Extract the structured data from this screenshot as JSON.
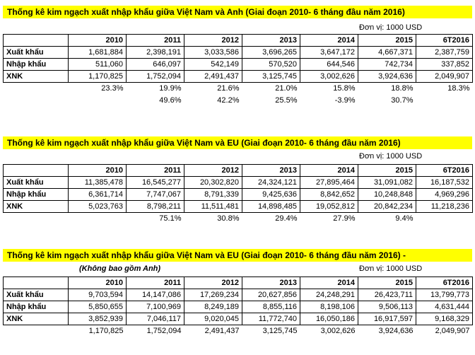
{
  "columns": [
    "2010",
    "2011",
    "2012",
    "2013",
    "2014",
    "2015",
    "6T2016"
  ],
  "unit_label": "Đơn vị: 1000 USD",
  "section1": {
    "title": "Thống kê kim ngạch xuất nhập khẩu giữa Việt Nam và Anh  (Giai đoạn 2010- 6 tháng đầu năm 2016)",
    "rows": [
      {
        "label": "Xuất khẩu",
        "values": [
          "1,681,884",
          "2,398,191",
          "3,033,586",
          "3,696,265",
          "3,647,172",
          "4,667,371",
          "2,387,759"
        ]
      },
      {
        "label": "Nhập khẩu",
        "values": [
          "511,060",
          "646,097",
          "542,149",
          "570,520",
          "644,546",
          "742,734",
          "337,852"
        ]
      },
      {
        "label": "XNK",
        "values": [
          "1,170,825",
          "1,752,094",
          "2,491,437",
          "3,125,745",
          "3,002,626",
          "3,924,636",
          "2,049,907"
        ]
      }
    ],
    "extra_rows": [
      [
        "",
        "23.3%",
        "19.9%",
        "21.6%",
        "21.0%",
        "15.8%",
        "18.8%",
        "18.3%"
      ],
      [
        "",
        "",
        "49.6%",
        "42.2%",
        "25.5%",
        "-3.9%",
        "30.7%",
        ""
      ]
    ]
  },
  "section2": {
    "title": "Thống kê kim ngạch xuất nhập khẩu giữa Việt Nam và EU  (Giai đoạn 2010- 6 tháng đầu năm 2016)",
    "rows": [
      {
        "label": "Xuất khẩu",
        "values": [
          "11,385,478",
          "16,545,277",
          "20,302,820",
          "24,324,121",
          "27,895,464",
          "31,091,082",
          "16,187,532"
        ]
      },
      {
        "label": "Nhập khẩu",
        "values": [
          "6,361,714",
          "7,747,067",
          "8,791,339",
          "9,425,636",
          "8,842,652",
          "10,248,848",
          "4,969,296"
        ]
      },
      {
        "label": "XNK",
        "values": [
          "5,023,763",
          "8,798,211",
          "11,511,481",
          "14,898,485",
          "19,052,812",
          "20,842,234",
          "11,218,236"
        ]
      }
    ],
    "extra_rows": [
      [
        "",
        "",
        "75.1%",
        "30.8%",
        "29.4%",
        "27.9%",
        "9.4%",
        ""
      ]
    ]
  },
  "section3": {
    "title": "Thống kê kim ngạch xuất nhập khẩu giữa Việt Nam và EU  (Giai đoạn 2010- 6 tháng đầu năm 2016) -",
    "subnote": "(Không bao gồm Anh)",
    "rows": [
      {
        "label": "Xuất khẩu",
        "values": [
          "9,703,594",
          "14,147,086",
          "17,269,234",
          "20,627,856",
          "24,248,291",
          "26,423,711",
          "13,799,773"
        ]
      },
      {
        "label": "Nhập khẩu",
        "values": [
          "5,850,655",
          "7,100,969",
          "8,249,189",
          "8,855,116",
          "8,198,106",
          "9,506,113",
          "4,631,444"
        ]
      },
      {
        "label": "XNK",
        "values": [
          "3,852,939",
          "7,046,117",
          "9,020,045",
          "11,772,740",
          "16,050,186",
          "16,917,597",
          "9,168,329"
        ]
      }
    ],
    "extra_rows": [
      [
        "",
        "1,170,825",
        "1,752,094",
        "2,491,437",
        "3,125,745",
        "3,002,626",
        "3,924,636",
        "2,049,907"
      ]
    ]
  }
}
